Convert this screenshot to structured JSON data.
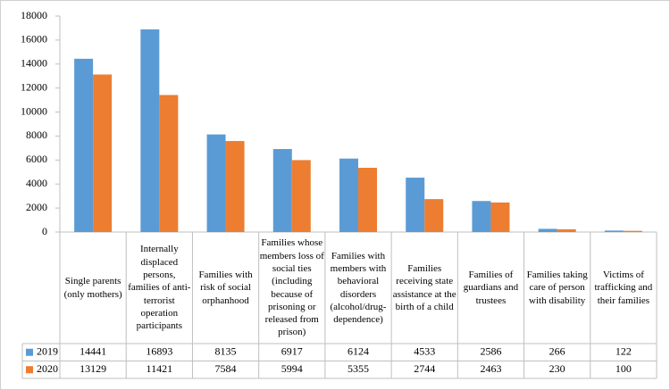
{
  "chart_data": {
    "type": "bar",
    "categories": [
      "Single parents (only mothers)",
      "Internally displaced persons, families of anti-terrorist operation participants",
      "Families with risk of social orphanhood",
      "Families whose members loss of social ties (including because of prisoning or released from prison)",
      "Families with members with behavioral disorders (alcohol/drug-dependence)",
      "Families receiving state assistance at the birth of a child",
      "Families of guardians and trustees",
      "Families taking care of person with disability",
      "Victims of trafficking and their families"
    ],
    "series": [
      {
        "name": "2019",
        "color": "#5b9bd5",
        "values": [
          14441,
          16893,
          8135,
          6917,
          6124,
          4533,
          2586,
          266,
          122
        ]
      },
      {
        "name": "2020",
        "color": "#ed7d31",
        "values": [
          13129,
          11421,
          7584,
          5994,
          5355,
          2744,
          2463,
          230,
          100
        ]
      }
    ],
    "ylim": [
      0,
      18000
    ],
    "yticks": [
      0,
      2000,
      4000,
      6000,
      8000,
      10000,
      12000,
      14000,
      16000,
      18000
    ],
    "grid": false
  }
}
